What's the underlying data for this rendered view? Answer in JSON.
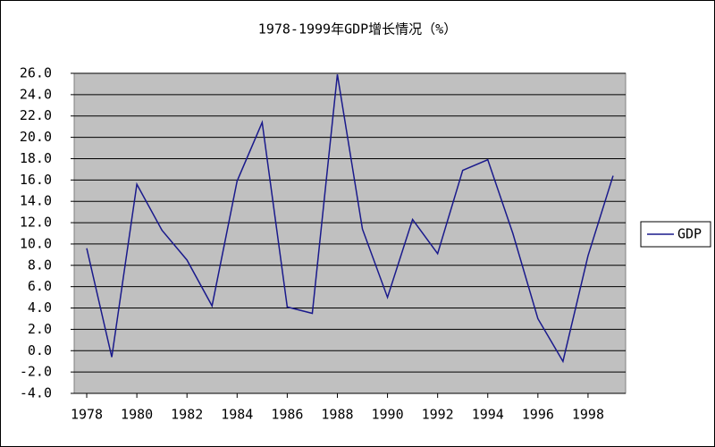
{
  "chart_data": {
    "type": "line",
    "title": "1978-1999年GDP增长情况（%）",
    "x": [
      1978,
      1979,
      1980,
      1981,
      1982,
      1983,
      1984,
      1985,
      1986,
      1987,
      1988,
      1989,
      1990,
      1991,
      1992,
      1993,
      1994,
      1995,
      1996,
      1997,
      1998,
      1999
    ],
    "series": [
      {
        "name": "GDP",
        "color": "#1a1a8c",
        "values": [
          9.6,
          -0.6,
          15.6,
          11.3,
          8.5,
          4.2,
          15.9,
          21.4,
          4.1,
          3.5,
          25.9,
          11.4,
          5.0,
          12.3,
          9.1,
          16.9,
          17.9,
          11.0,
          3.0,
          -1.0,
          8.9,
          16.4
        ]
      }
    ],
    "xlim": [
      1977.5,
      1999.5
    ],
    "xticks": [
      1978,
      1980,
      1982,
      1984,
      1986,
      1988,
      1990,
      1992,
      1994,
      1996,
      1998
    ],
    "ylim": [
      -4,
      26
    ],
    "yticks": [
      {
        "value": -4,
        "label": "-4.0"
      },
      {
        "value": -2,
        "label": "-2.0"
      },
      {
        "value": 0,
        "label": "0.0"
      },
      {
        "value": 2,
        "label": "2.0"
      },
      {
        "value": 4,
        "label": "4.0"
      },
      {
        "value": 6,
        "label": "6.0"
      },
      {
        "value": 8,
        "label": "8.0"
      },
      {
        "value": 10,
        "label": "10.0"
      },
      {
        "value": 12,
        "label": "12.0"
      },
      {
        "value": 14,
        "label": "14.0"
      },
      {
        "value": 16,
        "label": "16.0"
      },
      {
        "value": 18,
        "label": "18.0"
      },
      {
        "value": 20,
        "label": "20.0"
      },
      {
        "value": 22,
        "label": "22.0"
      },
      {
        "value": 24,
        "label": "24.0"
      },
      {
        "value": 26,
        "label": "26.0"
      }
    ],
    "grid": true,
    "plot_background": "#c0c0c0",
    "legend": "right"
  }
}
